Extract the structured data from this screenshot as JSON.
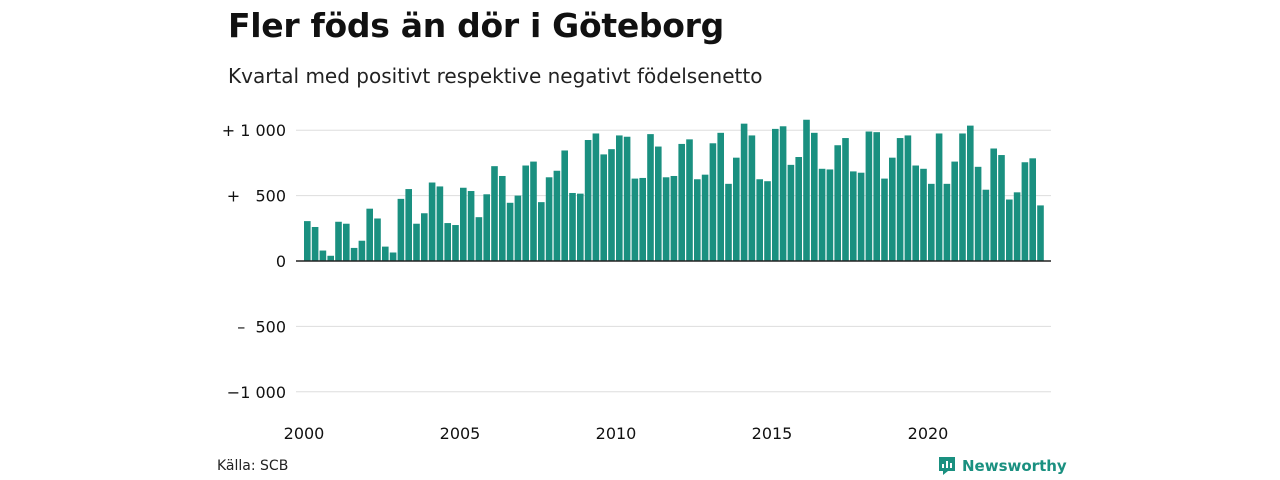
{
  "title": "Fler föds än dör i Göteborg",
  "subtitle": "Kvartal med positivt respektive negativt födelsenetto",
  "source": "Källa: SCB",
  "brand": "Newsworthy",
  "colors": {
    "bar": "#1a9080",
    "grid": "#dddddd",
    "axis": "#222222"
  },
  "chart_data": {
    "type": "bar",
    "title": "Fler föds än dör i Göteborg",
    "subtitle": "Kvartal med positivt respektive negativt födelsenetto",
    "xlabel": "",
    "ylabel": "",
    "x_start": "2000-Q1",
    "x_ticks": [
      {
        "value": 2000,
        "label": "2000"
      },
      {
        "value": 2005,
        "label": "2005"
      },
      {
        "value": 2010,
        "label": "2010"
      },
      {
        "value": 2015,
        "label": "2015"
      },
      {
        "value": 2020,
        "label": "2020"
      }
    ],
    "y_ticks": [
      {
        "value": 1000,
        "label": "+ 1 000"
      },
      {
        "value": 500,
        "label": "+   500"
      },
      {
        "value": 0,
        "label": "0"
      },
      {
        "value": -500,
        "label": "–  500"
      },
      {
        "value": -1000,
        "label": "−1 000"
      }
    ],
    "xlim": [
      2000,
      2024.5
    ],
    "ylim": [
      -1100,
      1100
    ],
    "grid": true,
    "legend": "none",
    "values": [
      305,
      260,
      80,
      40,
      300,
      285,
      100,
      155,
      400,
      325,
      110,
      65,
      475,
      550,
      285,
      365,
      600,
      570,
      290,
      275,
      560,
      535,
      335,
      510,
      725,
      650,
      445,
      500,
      730,
      760,
      450,
      640,
      690,
      845,
      520,
      515,
      925,
      975,
      815,
      855,
      960,
      950,
      630,
      635,
      970,
      875,
      640,
      650,
      895,
      930,
      625,
      660,
      900,
      980,
      590,
      790,
      1050,
      960,
      625,
      610,
      1010,
      1030,
      735,
      795,
      1080,
      980,
      705,
      700,
      885,
      940,
      685,
      675,
      990,
      985,
      630,
      790,
      940,
      960,
      730,
      705,
      590,
      975,
      590,
      760,
      975,
      1035,
      720,
      545,
      860,
      810,
      470,
      525,
      755,
      785,
      425
    ]
  }
}
